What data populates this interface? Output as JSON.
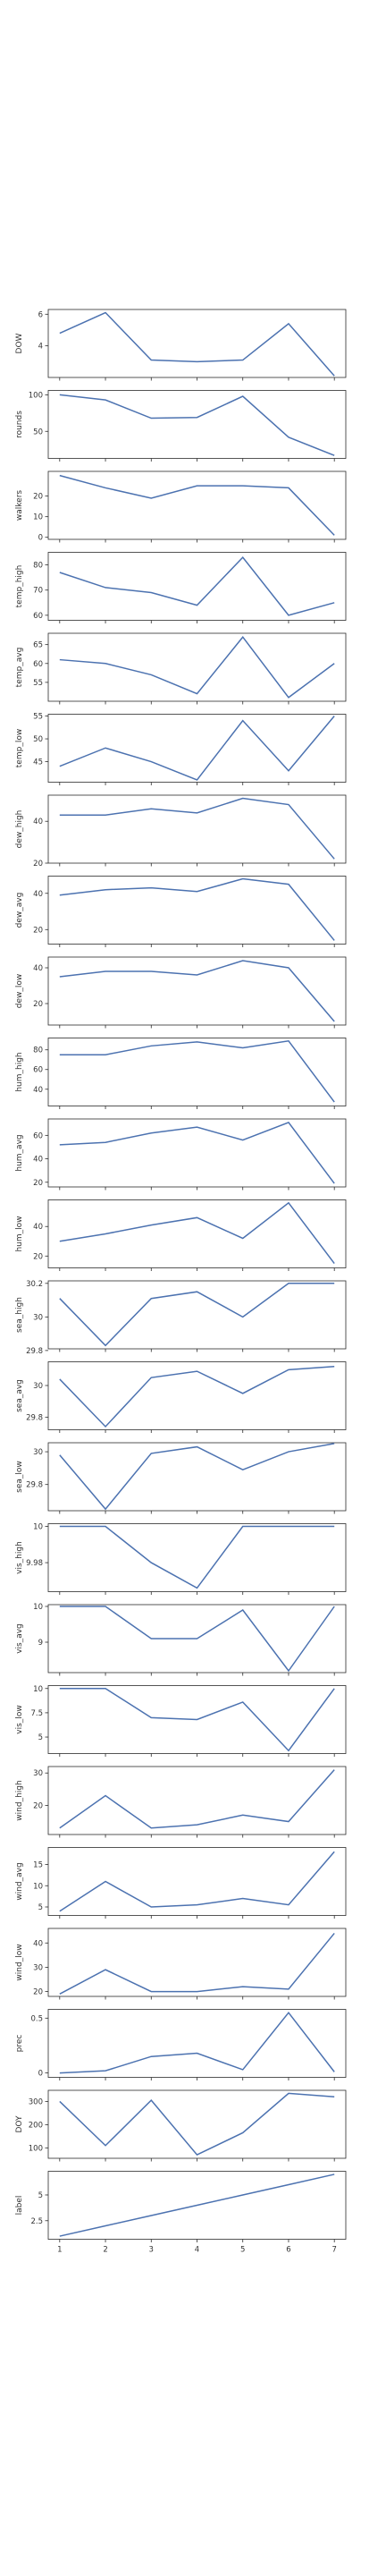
{
  "colors": {
    "line": "#4c72b0",
    "axes": "#2b2b2b",
    "text": "#333333"
  },
  "chart_data": [
    {
      "type": "line",
      "ylabel": "DOW",
      "x": [
        1,
        2,
        3,
        4,
        5,
        6,
        7
      ],
      "values": [
        4.8,
        6.1,
        3.1,
        3.0,
        3.1,
        5.4,
        2.1
      ],
      "xlim": [
        0.75,
        7.25
      ],
      "ylim": [
        2.0,
        6.3
      ],
      "yticks": [
        4,
        6
      ]
    },
    {
      "type": "line",
      "ylabel": "rounds",
      "x": [
        1,
        2,
        3,
        4,
        5,
        6,
        7
      ],
      "values": [
        100,
        93,
        68,
        69,
        98,
        42,
        17
      ],
      "xlim": [
        0.75,
        7.25
      ],
      "ylim": [
        13,
        106
      ],
      "yticks": [
        50,
        100
      ]
    },
    {
      "type": "line",
      "ylabel": "walkers",
      "x": [
        1,
        2,
        3,
        4,
        5,
        6,
        7
      ],
      "values": [
        30,
        24,
        19,
        25,
        25,
        24,
        1
      ],
      "xlim": [
        0.75,
        7.25
      ],
      "ylim": [
        -1,
        32
      ],
      "yticks": [
        0,
        10,
        20
      ]
    },
    {
      "type": "line",
      "ylabel": "temp_high",
      "x": [
        1,
        2,
        3,
        4,
        5,
        6,
        7
      ],
      "values": [
        77,
        71,
        69,
        64,
        83,
        60,
        65
      ],
      "xlim": [
        0.75,
        7.25
      ],
      "ylim": [
        58,
        85
      ],
      "yticks": [
        60,
        70,
        80
      ]
    },
    {
      "type": "line",
      "ylabel": "temp_avg",
      "x": [
        1,
        2,
        3,
        4,
        5,
        6,
        7
      ],
      "values": [
        61,
        60,
        57,
        52,
        67,
        51,
        60
      ],
      "xlim": [
        0.75,
        7.25
      ],
      "ylim": [
        50,
        68
      ],
      "yticks": [
        55,
        60,
        65
      ]
    },
    {
      "type": "line",
      "ylabel": "temp_low",
      "x": [
        1,
        2,
        3,
        4,
        5,
        6,
        7
      ],
      "values": [
        44,
        48,
        45,
        41,
        54,
        43,
        55
      ],
      "xlim": [
        0.75,
        7.25
      ],
      "ylim": [
        40.5,
        55.4
      ],
      "yticks": [
        45,
        50,
        55
      ]
    },
    {
      "type": "line",
      "ylabel": "dew_high",
      "x": [
        1,
        2,
        3,
        4,
        5,
        6,
        7
      ],
      "values": [
        43,
        43,
        46,
        44,
        51,
        48,
        22
      ],
      "xlim": [
        0.75,
        7.25
      ],
      "ylim": [
        20,
        52.5
      ],
      "yticks": [
        20,
        40
      ]
    },
    {
      "type": "line",
      "ylabel": "dew_avg",
      "x": [
        1,
        2,
        3,
        4,
        5,
        6,
        7
      ],
      "values": [
        39,
        42,
        43,
        41,
        48,
        45,
        14
      ],
      "xlim": [
        0.75,
        7.25
      ],
      "ylim": [
        12,
        49.5
      ],
      "yticks": [
        20,
        40
      ]
    },
    {
      "type": "line",
      "ylabel": "dew_low",
      "x": [
        1,
        2,
        3,
        4,
        5,
        6,
        7
      ],
      "values": [
        35,
        38,
        38,
        36,
        44,
        40,
        10
      ],
      "xlim": [
        0.75,
        7.25
      ],
      "ylim": [
        8,
        46
      ],
      "yticks": [
        20,
        40
      ]
    },
    {
      "type": "line",
      "ylabel": "hum_high",
      "x": [
        1,
        2,
        3,
        4,
        5,
        6,
        7
      ],
      "values": [
        75,
        75,
        84,
        88,
        82,
        89,
        27
      ],
      "xlim": [
        0.75,
        7.25
      ],
      "ylim": [
        23,
        92
      ],
      "yticks": [
        40,
        60,
        80
      ]
    },
    {
      "type": "line",
      "ylabel": "hum_avg",
      "x": [
        1,
        2,
        3,
        4,
        5,
        6,
        7
      ],
      "values": [
        52,
        54,
        62,
        67,
        56,
        71,
        19
      ],
      "xlim": [
        0.75,
        7.25
      ],
      "ylim": [
        16,
        74
      ],
      "yticks": [
        20,
        40,
        60
      ]
    },
    {
      "type": "line",
      "ylabel": "hum_low",
      "x": [
        1,
        2,
        3,
        4,
        5,
        6,
        7
      ],
      "values": [
        30,
        35,
        41,
        46,
        32,
        56,
        15
      ],
      "xlim": [
        0.75,
        7.25
      ],
      "ylim": [
        12,
        58
      ],
      "yticks": [
        20,
        40
      ]
    },
    {
      "type": "line",
      "ylabel": "sea_high",
      "x": [
        1,
        2,
        3,
        4,
        5,
        6,
        7
      ],
      "values": [
        30.11,
        29.83,
        30.11,
        30.15,
        30.0,
        30.2,
        30.2
      ],
      "xlim": [
        0.75,
        7.25
      ],
      "ylim": [
        29.81,
        30.215
      ],
      "yticks": [
        29.8,
        30.0,
        30.2
      ]
    },
    {
      "type": "line",
      "ylabel": "sea_avg",
      "x": [
        1,
        2,
        3,
        4,
        5,
        6,
        7
      ],
      "values": [
        30.04,
        29.74,
        30.05,
        30.09,
        29.95,
        30.1,
        30.12
      ],
      "xlim": [
        0.75,
        7.25
      ],
      "ylim": [
        29.72,
        30.15
      ],
      "yticks": [
        29.8,
        30.0
      ]
    },
    {
      "type": "line",
      "ylabel": "sea_low",
      "x": [
        1,
        2,
        3,
        4,
        5,
        6,
        7
      ],
      "values": [
        29.98,
        29.65,
        29.99,
        30.03,
        29.89,
        30.0,
        30.05
      ],
      "xlim": [
        0.75,
        7.25
      ],
      "ylim": [
        29.64,
        30.055
      ],
      "yticks": [
        29.8,
        30.0
      ]
    },
    {
      "type": "line",
      "ylabel": "vis_high",
      "x": [
        1,
        2,
        3,
        4,
        5,
        6,
        7
      ],
      "values": [
        10.0,
        10.0,
        9.98,
        9.966,
        10.0,
        10.0,
        10.0
      ],
      "xlim": [
        0.75,
        7.25
      ],
      "ylim": [
        9.964,
        10.0015
      ],
      "yticks": [
        9.98,
        10.0
      ]
    },
    {
      "type": "line",
      "ylabel": "vis_avg",
      "x": [
        1,
        2,
        3,
        4,
        5,
        6,
        7
      ],
      "values": [
        10.0,
        10.0,
        9.1,
        9.1,
        9.9,
        8.2,
        10.0
      ],
      "xlim": [
        0.75,
        7.25
      ],
      "ylim": [
        8.15,
        10.05
      ],
      "yticks": [
        9,
        10
      ]
    },
    {
      "type": "line",
      "ylabel": "vis_low",
      "x": [
        1,
        2,
        3,
        4,
        5,
        6,
        7
      ],
      "values": [
        10.0,
        10.0,
        7.0,
        6.8,
        8.6,
        3.6,
        10.0
      ],
      "xlim": [
        0.75,
        7.25
      ],
      "ylim": [
        3.3,
        10.3
      ],
      "yticks": [
        5.0,
        7.5,
        10.0
      ]
    },
    {
      "type": "line",
      "ylabel": "wind_high",
      "x": [
        1,
        2,
        3,
        4,
        5,
        6,
        7
      ],
      "values": [
        13,
        23,
        13,
        14,
        17,
        15,
        31
      ],
      "xlim": [
        0.75,
        7.25
      ],
      "ylim": [
        11,
        32
      ],
      "yticks": [
        20,
        30
      ]
    },
    {
      "type": "line",
      "ylabel": "wind_avg",
      "x": [
        1,
        2,
        3,
        4,
        5,
        6,
        7
      ],
      "values": [
        4,
        11,
        5,
        5.5,
        7,
        5.5,
        18
      ],
      "xlim": [
        0.75,
        7.25
      ],
      "ylim": [
        3,
        19
      ],
      "yticks": [
        5,
        10,
        15
      ]
    },
    {
      "type": "line",
      "ylabel": "wind_low",
      "x": [
        1,
        2,
        3,
        4,
        5,
        6,
        7
      ],
      "values": [
        19,
        29,
        20,
        20,
        22,
        21,
        44
      ],
      "xlim": [
        0.75,
        7.25
      ],
      "ylim": [
        18,
        46
      ],
      "yticks": [
        20,
        30,
        40
      ]
    },
    {
      "type": "line",
      "ylabel": "prec",
      "x": [
        1,
        2,
        3,
        4,
        5,
        6,
        7
      ],
      "values": [
        0.0,
        0.02,
        0.15,
        0.18,
        0.03,
        0.55,
        0.01
      ],
      "xlim": [
        0.75,
        7.25
      ],
      "ylim": [
        -0.04,
        0.58
      ],
      "yticks": [
        0.0,
        0.5
      ]
    },
    {
      "type": "line",
      "ylabel": "DOY",
      "x": [
        1,
        2,
        3,
        4,
        5,
        6,
        7
      ],
      "values": [
        300,
        110,
        305,
        70,
        165,
        335,
        320
      ],
      "xlim": [
        0.75,
        7.25
      ],
      "ylim": [
        55,
        348
      ],
      "yticks": [
        100,
        200,
        300
      ]
    },
    {
      "type": "line",
      "ylabel": "label",
      "x": [
        1,
        2,
        3,
        4,
        5,
        6,
        7
      ],
      "values": [
        1,
        2,
        3,
        4,
        5,
        6,
        7
      ],
      "xlim": [
        0.75,
        7.25
      ],
      "ylim": [
        0.7,
        7.3
      ],
      "yticks": [
        2.5,
        5.0
      ],
      "xticks": [
        1,
        2,
        3,
        4,
        5,
        6,
        7
      ]
    }
  ]
}
